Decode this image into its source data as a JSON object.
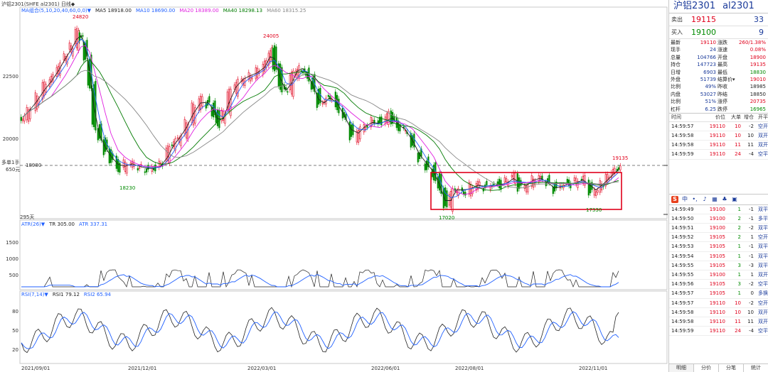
{
  "header": {
    "title": "沪铝2301(SHFE al2301)  日线◆",
    "ma_label": "MA组合(5,10,20,40,60,0,0)▼",
    "ma_values": [
      {
        "text": "MA5 18918.00",
        "color": "#222222"
      },
      {
        "text": "MA10 18690.00",
        "color": "#2060ff"
      },
      {
        "text": "MA20 18389.00",
        "color": "#e020e0"
      },
      {
        "text": "MA40 18298.13",
        "color": "#007a00"
      },
      {
        "text": "MA60 18315.25",
        "color": "#888888"
      }
    ]
  },
  "main_chart": {
    "y_ticks": [
      "22500",
      "20000"
    ],
    "y_ref_label": "18980",
    "side_note_1": "多单1手",
    "side_note_2": "650元",
    "bottom_note": "295天",
    "price_labels": [
      "24820",
      "24005",
      "18230",
      "17020",
      "17330",
      "19135"
    ],
    "series_colors": {
      "up": "#e0001b",
      "down": "#008a00",
      "ma5": "#222222",
      "ma10": "#2060ff",
      "ma20": "#e020e0",
      "ma40": "#007a00",
      "ma60": "#888888"
    }
  },
  "atr_panel": {
    "labels": [
      {
        "text": "ATR(26)▼",
        "color": "#2060ff"
      },
      {
        "text": "TR 305.00",
        "color": "#222222"
      },
      {
        "text": "ATR 337.31",
        "color": "#2060ff"
      }
    ],
    "y_ticks": [
      "1500",
      "1000",
      "500"
    ]
  },
  "rsi_panel": {
    "labels": [
      {
        "text": "RSI(7,14)▼",
        "color": "#2060ff"
      },
      {
        "text": "RSI1 79.12",
        "color": "#222222"
      },
      {
        "text": "RSI2 65.94",
        "color": "#2060ff"
      }
    ],
    "y_ticks": [
      "80",
      "50",
      "20"
    ]
  },
  "x_axis": [
    "2021/09/01",
    "2021/12/01",
    "2022/03/01",
    "2022/06/01",
    "2022/08/01",
    "2022/11/01"
  ],
  "quote": {
    "name": "沪铝2301",
    "code": "al2301",
    "ask": {
      "label": "卖出",
      "price": "19115",
      "vol": "33"
    },
    "bid": {
      "label": "买入",
      "price": "19100",
      "vol": "9"
    },
    "fields": [
      {
        "k1": "最新",
        "v1": "19110",
        "c1": "red",
        "k2": "涨跌",
        "v2": "260/1.38%",
        "c2": "red"
      },
      {
        "k1": "现手",
        "v1": "24",
        "c1": "blue",
        "k2": "涨速",
        "v2": "0.08%",
        "c2": "red"
      },
      {
        "k1": "总量",
        "v1": "104766",
        "c1": "blue",
        "k2": "开盘",
        "v2": "18900",
        "c2": "red"
      },
      {
        "k1": "持仓",
        "v1": "147723",
        "c1": "blue",
        "k2": "最高",
        "v2": "19135",
        "c2": "red"
      },
      {
        "k1": "日增",
        "v1": "6903",
        "c1": "blue",
        "k2": "最低",
        "v2": "18830",
        "c2": "green"
      },
      {
        "k1": "外盘",
        "v1": "51739",
        "c1": "blue",
        "k2": "结算价▾",
        "v2": "19010",
        "c2": "red"
      },
      {
        "k1": "比例",
        "v1": "49%",
        "c1": "blue",
        "k2": "昨收",
        "v2": "18985",
        "c2": "dark"
      },
      {
        "k1": "内盘",
        "v1": "53027",
        "c1": "blue",
        "k2": "昨结",
        "v2": "18850",
        "c2": "dark"
      },
      {
        "k1": "比例",
        "v1": "51%",
        "c1": "blue",
        "k2": "涨停",
        "v2": "20735",
        "c2": "red"
      },
      {
        "k1": "杠杆",
        "v1": "6.25",
        "c1": "blue",
        "k2": "跌停",
        "v2": "16965",
        "c2": "green"
      }
    ],
    "tick_header": [
      "时间",
      "价位",
      "大单",
      "增仓",
      "开平"
    ],
    "ticks_top": [
      {
        "t": "14:59:57",
        "p": "19110",
        "v": "10",
        "oi": "-2",
        "k": "空开"
      },
      {
        "t": "14:59:58",
        "p": "19110",
        "v": "10",
        "oi": "10",
        "k": "双开"
      },
      {
        "t": "14:59:58",
        "p": "19110",
        "v": "11",
        "oi": "11",
        "k": "双开"
      },
      {
        "t": "14:59:59",
        "p": "19110",
        "v": "24",
        "oi": "-4",
        "k": "空平"
      }
    ],
    "ticks": [
      {
        "t": "14:59:49",
        "p": "19100",
        "v": "1",
        "oi": "-1",
        "k": "双平"
      },
      {
        "t": "14:59:50",
        "p": "19100",
        "v": "2",
        "oi": "-1",
        "k": "多平"
      },
      {
        "t": "14:59:51",
        "p": "19100",
        "v": "2",
        "oi": "-2",
        "k": "双平"
      },
      {
        "t": "14:59:52",
        "p": "19105",
        "v": "2",
        "oi": "1",
        "k": "空开"
      },
      {
        "t": "14:59:53",
        "p": "19105",
        "v": "1",
        "oi": "-1",
        "k": "双平"
      },
      {
        "t": "14:59:54",
        "p": "19105",
        "v": "1",
        "oi": "-1",
        "k": "双平"
      },
      {
        "t": "14:59:55",
        "p": "19105",
        "v": "3",
        "oi": "-3",
        "k": "双平"
      },
      {
        "t": "14:59:55",
        "p": "19100",
        "v": "1",
        "oi": "1",
        "k": "双开"
      },
      {
        "t": "14:59:56",
        "p": "19105",
        "v": "3",
        "oi": "-2",
        "k": "空平"
      },
      {
        "t": "14:59:57",
        "p": "19105",
        "v": "1",
        "oi": "0",
        "k": "多换"
      },
      {
        "t": "14:59:57",
        "p": "19110",
        "v": "10",
        "oi": "-2",
        "k": "空开"
      },
      {
        "t": "14:59:58",
        "p": "19110",
        "v": "10",
        "oi": "10",
        "k": "双开"
      },
      {
        "t": "14:59:58",
        "p": "19110",
        "v": "11",
        "oi": "11",
        "k": "双开"
      },
      {
        "t": "14:59:59",
        "p": "19110",
        "v": "24",
        "oi": "-4",
        "k": "空平"
      }
    ],
    "tabs": [
      "明细",
      "分价",
      "分笔",
      "统计"
    ]
  }
}
